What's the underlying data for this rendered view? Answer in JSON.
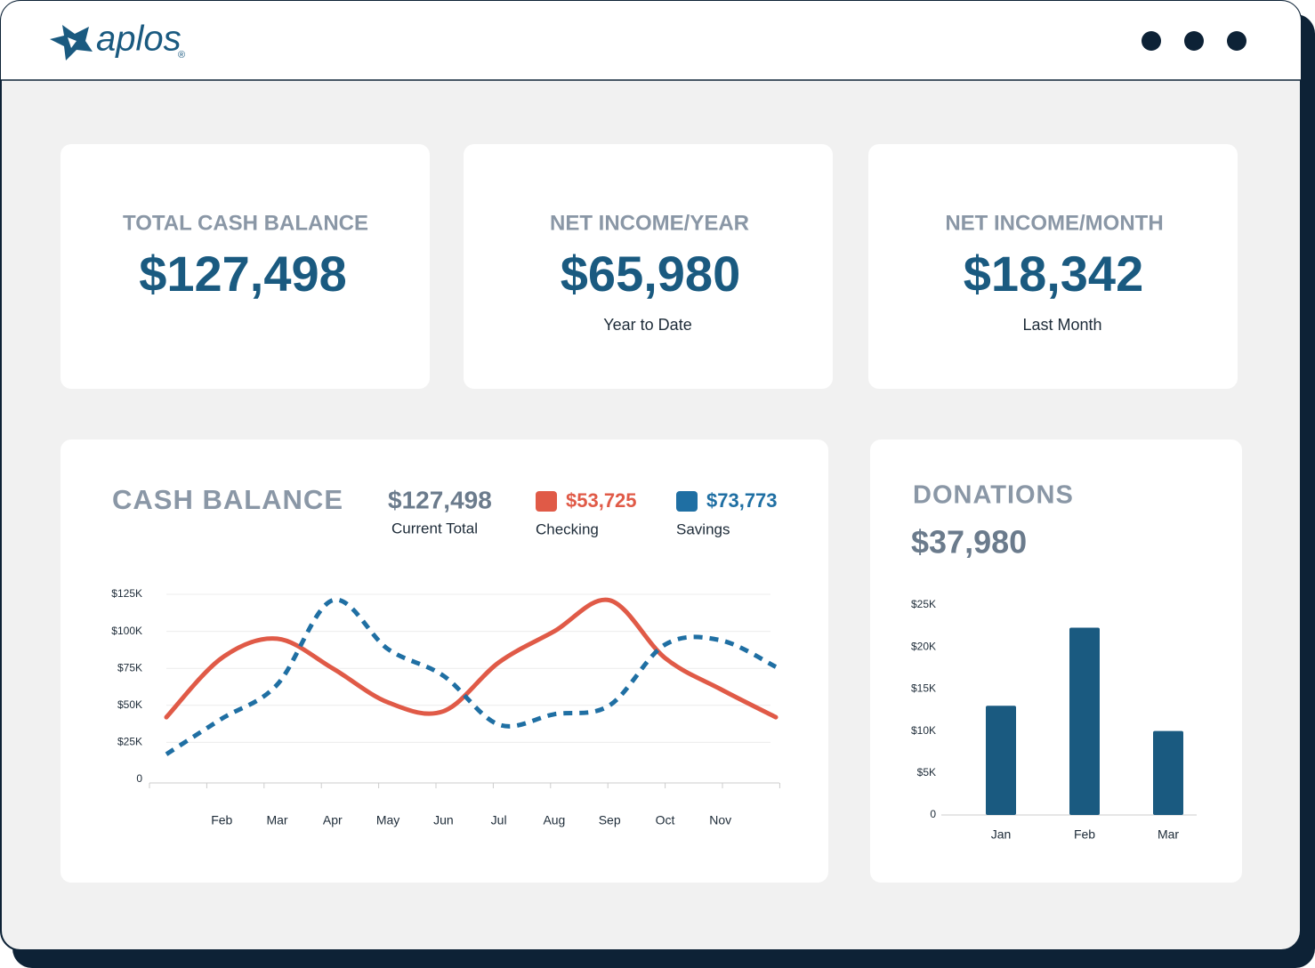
{
  "header": {
    "logo": "aplos",
    "trademark": "®"
  },
  "cards": [
    {
      "title": "TOTAL CASH BALANCE",
      "value": "$127,498"
    },
    {
      "title": "NET INCOME/YEAR",
      "value": "$65,980",
      "caption": "Year to Date"
    },
    {
      "title": "NET INCOME/MONTH",
      "value": "$18,342",
      "caption": "Last Month"
    }
  ],
  "chart_data": [
    {
      "type": "line",
      "title": "CASH BALANCE",
      "total": "$127,498",
      "total_label": "Current Total",
      "categories": [
        null,
        "Feb",
        "Mar",
        "Apr",
        "May",
        "Jun",
        "Jul",
        "Aug",
        "Sep",
        "Oct",
        "Nov",
        null
      ],
      "series": [
        {
          "name": "Checking",
          "total": "$53,725",
          "color": "#e05a47",
          "style": "solid",
          "values": [
            42000,
            82000,
            95000,
            75000,
            52000,
            46000,
            79000,
            100000,
            121000,
            82000,
            61000,
            42000
          ]
        },
        {
          "name": "Savings",
          "total": "$73,773",
          "color": "#1f6fa3",
          "style": "dashed",
          "values": [
            17000,
            41000,
            64000,
            121000,
            88000,
            70000,
            37000,
            44000,
            50000,
            91000,
            94000,
            76000
          ]
        }
      ],
      "ylim": [
        0,
        125000
      ],
      "yticks": [
        0,
        {
          "value": 25000,
          "label": "$25K"
        },
        {
          "value": 50000,
          "label": "$50K"
        },
        {
          "value": 75000,
          "label": "$75K"
        },
        {
          "value": 100000,
          "label": "$100K"
        },
        {
          "value": 125000,
          "label": "$125K"
        }
      ],
      "grid": true
    },
    {
      "type": "bar",
      "title": "DONATIONS",
      "total": "$37,980",
      "categories": [
        "Jan",
        "Feb",
        "Mar"
      ],
      "values": [
        13000,
        22300,
        10000
      ],
      "color": "#1a5a80",
      "ylim": [
        0,
        25000
      ],
      "yticks": [
        0,
        {
          "value": 5000,
          "label": "$5K"
        },
        {
          "value": 10000,
          "label": "$10K"
        },
        {
          "value": 15000,
          "label": "$15K"
        },
        {
          "value": 20000,
          "label": "$20K"
        },
        {
          "value": 25000,
          "label": "$25K"
        }
      ],
      "grid": false
    }
  ]
}
